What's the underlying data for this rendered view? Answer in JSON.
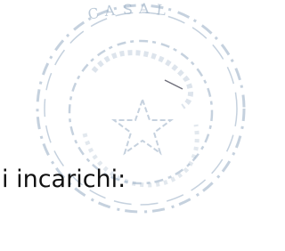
{
  "text": "i incarichi:"
}
